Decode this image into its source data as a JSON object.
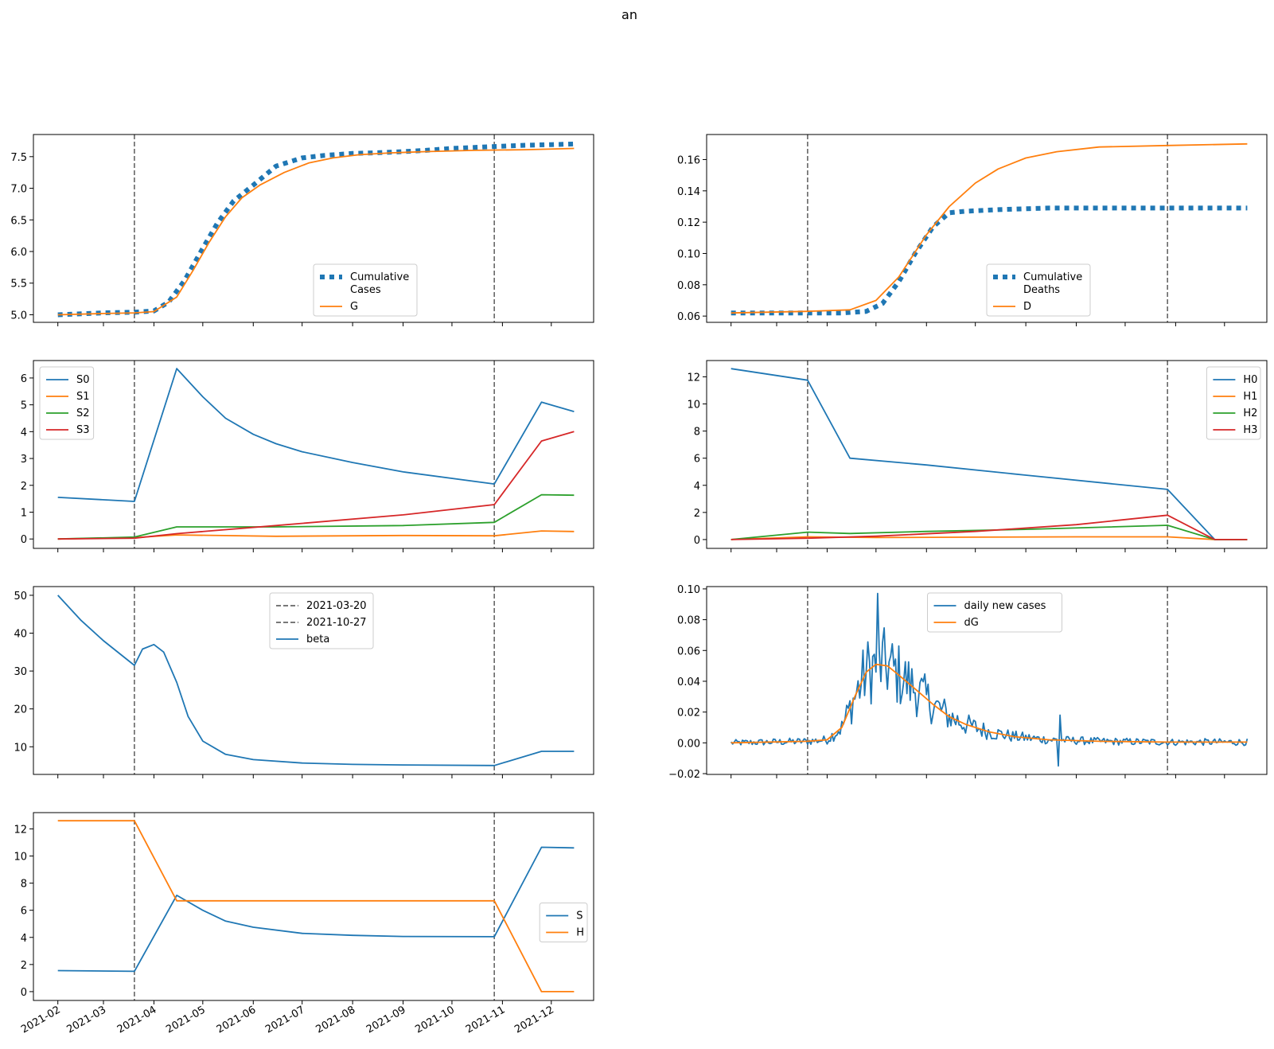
{
  "title": "an",
  "vlines": [
    "2021-03-20",
    "2021-10-27"
  ],
  "x_ticks": [
    "2021-02-01",
    "2021-03-01",
    "2021-04-01",
    "2021-05-01",
    "2021-06-01",
    "2021-07-01",
    "2021-08-01",
    "2021-09-01",
    "2021-10-01",
    "2021-11-01",
    "2021-12-01"
  ],
  "x_tick_labels": [
    "2021-02",
    "2021-03",
    "2021-04",
    "2021-05",
    "2021-06",
    "2021-07",
    "2021-08",
    "2021-09",
    "2021-10",
    "2021-11",
    "2021-12"
  ],
  "colors": {
    "blue": "#1f77b4",
    "orange": "#ff7f0e",
    "green": "#2ca02c",
    "red": "#d62728",
    "vline": "#666666"
  },
  "chart_data": [
    {
      "type": "line",
      "ylim": [
        4.88,
        7.85
      ],
      "yticks": [
        5.0,
        5.5,
        6.0,
        6.5,
        7.0,
        7.5
      ],
      "legend": "lower-center",
      "series": [
        {
          "name": "Cumulative\nCases",
          "style": "dotted",
          "color": "#1f77b4",
          "points": [
            [
              "2021-02-01",
              5.0
            ],
            [
              "2021-03-01",
              5.03
            ],
            [
              "2021-03-20",
              5.04
            ],
            [
              "2021-04-01",
              5.06
            ],
            [
              "2021-04-10",
              5.2
            ],
            [
              "2021-04-20",
              5.55
            ],
            [
              "2021-05-01",
              6.05
            ],
            [
              "2021-05-10",
              6.45
            ],
            [
              "2021-05-20",
              6.8
            ],
            [
              "2021-06-01",
              7.05
            ],
            [
              "2021-06-15",
              7.35
            ],
            [
              "2021-07-01",
              7.48
            ],
            [
              "2021-07-15",
              7.52
            ],
            [
              "2021-08-01",
              7.55
            ],
            [
              "2021-08-15",
              7.56
            ],
            [
              "2021-09-01",
              7.58
            ],
            [
              "2021-09-15",
              7.6
            ],
            [
              "2021-10-01",
              7.63
            ],
            [
              "2021-10-27",
              7.66
            ],
            [
              "2021-11-15",
              7.68
            ],
            [
              "2021-12-01",
              7.69
            ],
            [
              "2021-12-15",
              7.7
            ]
          ]
        },
        {
          "name": "G",
          "style": "solid",
          "color": "#ff7f0e",
          "points": [
            [
              "2021-02-01",
              5.0
            ],
            [
              "2021-03-01",
              5.02
            ],
            [
              "2021-03-20",
              5.03
            ],
            [
              "2021-04-01",
              5.05
            ],
            [
              "2021-04-15",
              5.28
            ],
            [
              "2021-04-25",
              5.7
            ],
            [
              "2021-05-05",
              6.15
            ],
            [
              "2021-05-15",
              6.55
            ],
            [
              "2021-05-25",
              6.85
            ],
            [
              "2021-06-05",
              7.05
            ],
            [
              "2021-06-20",
              7.25
            ],
            [
              "2021-07-05",
              7.4
            ],
            [
              "2021-07-20",
              7.48
            ],
            [
              "2021-08-05",
              7.53
            ],
            [
              "2021-08-25",
              7.56
            ],
            [
              "2021-09-15",
              7.58
            ],
            [
              "2021-10-15",
              7.6
            ],
            [
              "2021-11-15",
              7.61
            ],
            [
              "2021-12-15",
              7.63
            ]
          ]
        }
      ]
    },
    {
      "type": "line",
      "ylim": [
        0.056,
        0.176
      ],
      "yticks": [
        0.06,
        0.08,
        0.1,
        0.12,
        0.14,
        0.16
      ],
      "legend": "lower-center",
      "series": [
        {
          "name": "Cumulative\nDeaths",
          "style": "dotted",
          "color": "#1f77b4",
          "points": [
            [
              "2021-02-01",
              0.062
            ],
            [
              "2021-03-20",
              0.062
            ],
            [
              "2021-04-10",
              0.062
            ],
            [
              "2021-04-25",
              0.063
            ],
            [
              "2021-05-05",
              0.068
            ],
            [
              "2021-05-15",
              0.082
            ],
            [
              "2021-05-25",
              0.1
            ],
            [
              "2021-06-05",
              0.117
            ],
            [
              "2021-06-15",
              0.126
            ],
            [
              "2021-06-25",
              0.127
            ],
            [
              "2021-07-15",
              0.128
            ],
            [
              "2021-08-15",
              0.129
            ],
            [
              "2021-10-01",
              0.129
            ],
            [
              "2021-12-15",
              0.129
            ]
          ]
        },
        {
          "name": "D",
          "style": "solid",
          "color": "#ff7f0e",
          "points": [
            [
              "2021-02-01",
              0.062
            ],
            [
              "2021-03-20",
              0.063
            ],
            [
              "2021-04-15",
              0.064
            ],
            [
              "2021-05-01",
              0.07
            ],
            [
              "2021-05-15",
              0.085
            ],
            [
              "2021-06-01",
              0.112
            ],
            [
              "2021-06-15",
              0.13
            ],
            [
              "2021-07-01",
              0.145
            ],
            [
              "2021-07-15",
              0.154
            ],
            [
              "2021-08-01",
              0.161
            ],
            [
              "2021-08-20",
              0.165
            ],
            [
              "2021-09-15",
              0.168
            ],
            [
              "2021-10-27",
              0.169
            ],
            [
              "2021-12-15",
              0.17
            ]
          ]
        }
      ]
    },
    {
      "type": "line",
      "ylim": [
        -0.35,
        6.65
      ],
      "yticks": [
        0,
        1,
        2,
        3,
        4,
        5,
        6
      ],
      "legend": "upper-left",
      "series": [
        {
          "name": "S0",
          "color": "#1f77b4",
          "points": [
            [
              "2021-02-01",
              1.55
            ],
            [
              "2021-03-20",
              1.4
            ],
            [
              "2021-04-15",
              6.35
            ],
            [
              "2021-05-01",
              5.3
            ],
            [
              "2021-05-15",
              4.5
            ],
            [
              "2021-06-01",
              3.9
            ],
            [
              "2021-06-15",
              3.55
            ],
            [
              "2021-07-01",
              3.25
            ],
            [
              "2021-08-01",
              2.85
            ],
            [
              "2021-09-01",
              2.5
            ],
            [
              "2021-10-27",
              2.05
            ],
            [
              "2021-11-25",
              5.1
            ],
            [
              "2021-12-15",
              4.75
            ]
          ]
        },
        {
          "name": "S1",
          "color": "#ff7f0e",
          "points": [
            [
              "2021-02-01",
              0.0
            ],
            [
              "2021-03-20",
              0.05
            ],
            [
              "2021-04-15",
              0.15
            ],
            [
              "2021-06-15",
              0.1
            ],
            [
              "2021-09-01",
              0.13
            ],
            [
              "2021-10-27",
              0.12
            ],
            [
              "2021-11-25",
              0.3
            ],
            [
              "2021-12-15",
              0.28
            ]
          ]
        },
        {
          "name": "S2",
          "color": "#2ca02c",
          "points": [
            [
              "2021-02-01",
              0.0
            ],
            [
              "2021-03-20",
              0.07
            ],
            [
              "2021-04-15",
              0.45
            ],
            [
              "2021-06-15",
              0.45
            ],
            [
              "2021-09-01",
              0.5
            ],
            [
              "2021-10-27",
              0.62
            ],
            [
              "2021-11-25",
              1.65
            ],
            [
              "2021-12-15",
              1.63
            ]
          ]
        },
        {
          "name": "S3",
          "color": "#d62728",
          "points": [
            [
              "2021-02-01",
              0.0
            ],
            [
              "2021-03-20",
              0.03
            ],
            [
              "2021-04-15",
              0.2
            ],
            [
              "2021-06-15",
              0.5
            ],
            [
              "2021-09-01",
              0.9
            ],
            [
              "2021-10-27",
              1.28
            ],
            [
              "2021-11-25",
              3.65
            ],
            [
              "2021-12-15",
              4.0
            ]
          ]
        }
      ]
    },
    {
      "type": "line",
      "ylim": [
        -0.65,
        13.2
      ],
      "yticks": [
        0,
        2,
        4,
        6,
        8,
        10,
        12
      ],
      "legend": "upper-right",
      "series": [
        {
          "name": "H0",
          "color": "#1f77b4",
          "points": [
            [
              "2021-02-01",
              12.6
            ],
            [
              "2021-03-20",
              11.75
            ],
            [
              "2021-04-15",
              6.0
            ],
            [
              "2021-06-01",
              5.5
            ],
            [
              "2021-08-01",
              4.75
            ],
            [
              "2021-10-27",
              3.7
            ],
            [
              "2021-11-25",
              0.0
            ],
            [
              "2021-12-15",
              0.0
            ]
          ]
        },
        {
          "name": "H1",
          "color": "#ff7f0e",
          "points": [
            [
              "2021-02-01",
              0.0
            ],
            [
              "2021-03-20",
              0.2
            ],
            [
              "2021-05-01",
              0.15
            ],
            [
              "2021-07-01",
              0.18
            ],
            [
              "2021-09-01",
              0.2
            ],
            [
              "2021-10-27",
              0.2
            ],
            [
              "2021-11-25",
              0.0
            ],
            [
              "2021-12-15",
              0.0
            ]
          ]
        },
        {
          "name": "H2",
          "color": "#2ca02c",
          "points": [
            [
              "2021-02-01",
              0.0
            ],
            [
              "2021-03-20",
              0.55
            ],
            [
              "2021-04-15",
              0.45
            ],
            [
              "2021-06-01",
              0.6
            ],
            [
              "2021-08-01",
              0.75
            ],
            [
              "2021-10-27",
              1.05
            ],
            [
              "2021-11-25",
              0.0
            ],
            [
              "2021-12-15",
              0.0
            ]
          ]
        },
        {
          "name": "H3",
          "color": "#d62728",
          "points": [
            [
              "2021-02-01",
              0.0
            ],
            [
              "2021-03-20",
              0.1
            ],
            [
              "2021-05-01",
              0.25
            ],
            [
              "2021-07-01",
              0.6
            ],
            [
              "2021-09-01",
              1.1
            ],
            [
              "2021-10-27",
              1.8
            ],
            [
              "2021-11-25",
              0.0
            ],
            [
              "2021-12-15",
              0.0
            ]
          ]
        }
      ]
    },
    {
      "type": "line",
      "ylim": [
        2.7,
        52.3
      ],
      "yticks": [
        10,
        20,
        30,
        40,
        50
      ],
      "legend": "upper-center",
      "series": [
        {
          "name": "2021-03-20",
          "style": "dashed",
          "color": "#666666",
          "legend_only": true
        },
        {
          "name": "2021-10-27",
          "style": "dashed",
          "color": "#666666",
          "legend_only": true
        },
        {
          "name": "beta",
          "color": "#1f77b4",
          "points": [
            [
              "2021-02-01",
              50.0
            ],
            [
              "2021-02-15",
              43.5
            ],
            [
              "2021-03-01",
              38.0
            ],
            [
              "2021-03-20",
              31.5
            ],
            [
              "2021-03-25",
              35.8
            ],
            [
              "2021-04-01",
              37.0
            ],
            [
              "2021-04-07",
              35.0
            ],
            [
              "2021-04-15",
              27.0
            ],
            [
              "2021-04-22",
              18.0
            ],
            [
              "2021-05-01",
              11.5
            ],
            [
              "2021-05-15",
              8.0
            ],
            [
              "2021-06-01",
              6.6
            ],
            [
              "2021-07-01",
              5.7
            ],
            [
              "2021-08-01",
              5.35
            ],
            [
              "2021-09-01",
              5.2
            ],
            [
              "2021-10-27",
              5.05
            ],
            [
              "2021-11-25",
              8.8
            ],
            [
              "2021-12-15",
              8.8
            ]
          ]
        }
      ]
    },
    {
      "type": "line",
      "ylim": [
        -0.0205,
        0.1015
      ],
      "yticks": [
        -0.02,
        0.0,
        0.02,
        0.04,
        0.06,
        0.08,
        0.1
      ],
      "legend": "upper-center",
      "series": [
        {
          "name": "daily new cases",
          "color": "#1f77b4",
          "style": "noisy"
        },
        {
          "name": "dG",
          "color": "#ff7f0e",
          "points": [
            [
              "2021-02-01",
              0.0
            ],
            [
              "2021-03-20",
              0.001
            ],
            [
              "2021-04-01",
              0.002
            ],
            [
              "2021-04-10",
              0.01
            ],
            [
              "2021-04-18",
              0.03
            ],
            [
              "2021-04-25",
              0.046
            ],
            [
              "2021-05-01",
              0.051
            ],
            [
              "2021-05-08",
              0.05
            ],
            [
              "2021-05-15",
              0.044
            ],
            [
              "2021-05-25",
              0.035
            ],
            [
              "2021-06-05",
              0.025
            ],
            [
              "2021-06-15",
              0.017
            ],
            [
              "2021-06-25",
              0.012
            ],
            [
              "2021-07-10",
              0.007
            ],
            [
              "2021-07-25",
              0.004
            ],
            [
              "2021-08-15",
              0.002
            ],
            [
              "2021-09-15",
              0.001
            ],
            [
              "2021-10-27",
              0.0005
            ],
            [
              "2021-12-15",
              0.0005
            ]
          ]
        }
      ]
    },
    {
      "type": "line",
      "ylim": [
        -0.65,
        13.2
      ],
      "yticks": [
        0,
        2,
        4,
        6,
        8,
        10,
        12
      ],
      "legend": "center-right",
      "series": [
        {
          "name": "S",
          "color": "#1f77b4",
          "points": [
            [
              "2021-02-01",
              1.55
            ],
            [
              "2021-03-20",
              1.5
            ],
            [
              "2021-04-15",
              7.1
            ],
            [
              "2021-05-01",
              6.0
            ],
            [
              "2021-05-15",
              5.2
            ],
            [
              "2021-06-01",
              4.75
            ],
            [
              "2021-07-01",
              4.3
            ],
            [
              "2021-08-01",
              4.15
            ],
            [
              "2021-09-01",
              4.07
            ],
            [
              "2021-10-27",
              4.05
            ],
            [
              "2021-11-25",
              10.65
            ],
            [
              "2021-12-15",
              10.6
            ]
          ]
        },
        {
          "name": "H",
          "color": "#ff7f0e",
          "points": [
            [
              "2021-02-01",
              12.6
            ],
            [
              "2021-03-20",
              12.6
            ],
            [
              "2021-04-15",
              6.7
            ],
            [
              "2021-10-27",
              6.7
            ],
            [
              "2021-11-25",
              0.0
            ],
            [
              "2021-12-15",
              0.0
            ]
          ]
        }
      ]
    }
  ]
}
